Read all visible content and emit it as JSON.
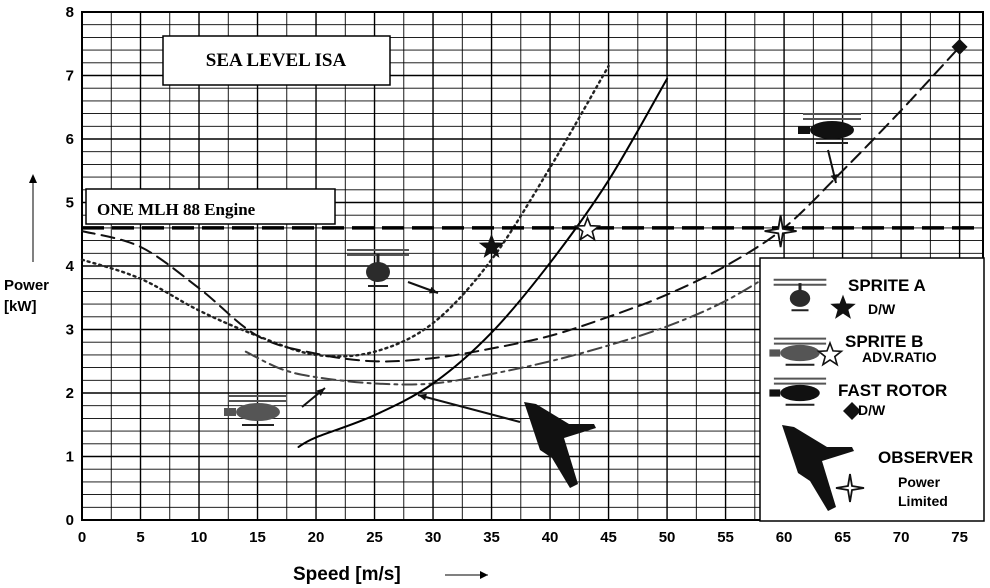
{
  "chart_data": {
    "type": "line",
    "title": "SEA LEVEL ISA",
    "annotation": "ONE MLH 88 Engine",
    "xlabel": "Speed [m/s]",
    "ylabel": "Power [kW]",
    "xlim": [
      0,
      77
    ],
    "ylim": [
      0,
      8
    ],
    "xticks": [
      0,
      5,
      10,
      15,
      20,
      25,
      30,
      35,
      40,
      45,
      50,
      55,
      60,
      65,
      70,
      75
    ],
    "yticks": [
      0,
      1,
      2,
      3,
      4,
      5,
      6,
      7,
      8
    ],
    "grid": true,
    "engine_limit_kw": 4.6,
    "series": [
      {
        "name": "SPRITE A",
        "style": "dotted",
        "color": "#222222",
        "x": [
          0,
          5,
          10,
          15,
          20,
          25,
          30,
          35,
          40,
          45
        ],
        "y": [
          4.1,
          3.8,
          3.3,
          2.9,
          2.6,
          2.65,
          3.1,
          4.1,
          5.55,
          7.15
        ]
      },
      {
        "name": "SPRITE B",
        "style": "dashdot",
        "color": "#444444",
        "x": [
          14,
          17,
          20,
          25,
          30,
          35,
          40,
          45,
          50,
          55,
          60
        ],
        "y": [
          2.65,
          2.38,
          2.25,
          2.15,
          2.15,
          2.3,
          2.5,
          2.75,
          3.05,
          3.45,
          4.0
        ]
      },
      {
        "name": "FAST ROTOR",
        "style": "dashed",
        "color": "#111111",
        "x": [
          0,
          5,
          10,
          15,
          20,
          25,
          30,
          35,
          40,
          45,
          50,
          55,
          60,
          65,
          70,
          75
        ],
        "y": [
          4.55,
          4.3,
          3.65,
          2.9,
          2.62,
          2.5,
          2.55,
          2.7,
          2.9,
          3.2,
          3.55,
          4.0,
          4.6,
          5.5,
          6.45,
          7.45
        ]
      },
      {
        "name": "OBSERVER",
        "style": "solid",
        "color": "#000000",
        "x": [
          18.5,
          20,
          25,
          30,
          35,
          40,
          45,
          50
        ],
        "y": [
          1.15,
          1.3,
          1.65,
          2.15,
          2.95,
          4.05,
          5.35,
          6.95
        ]
      }
    ],
    "markers": [
      {
        "series": "SPRITE A",
        "x": 35,
        "y": 4.3,
        "shape": "filled-star",
        "label": "D/W"
      },
      {
        "series": "SPRITE B",
        "x": 43.2,
        "y": 4.57,
        "shape": "hollow-star",
        "label": "ADV.RATIO"
      },
      {
        "series": "FAST ROTOR",
        "x": 75,
        "y": 7.45,
        "shape": "diamond",
        "label": "D/W"
      },
      {
        "series": "OBSERVER",
        "x": 59.7,
        "y": 4.55,
        "shape": "hollow-4point-star",
        "label": "Power Limited"
      }
    ],
    "legend": {
      "position": "bottom-right",
      "entries": [
        {
          "name": "SPRITE A",
          "sub": [
            "D/W"
          ],
          "marker": "filled-star"
        },
        {
          "name": "SPRITE B",
          "sub": [
            "ADV.RATIO"
          ],
          "marker": "hollow-star"
        },
        {
          "name": "FAST ROTOR",
          "sub": [
            "D/W"
          ],
          "marker": "diamond"
        },
        {
          "name": "OBSERVER",
          "sub": [
            "Power",
            "Limited"
          ],
          "marker": "hollow-4point-star"
        }
      ]
    }
  }
}
